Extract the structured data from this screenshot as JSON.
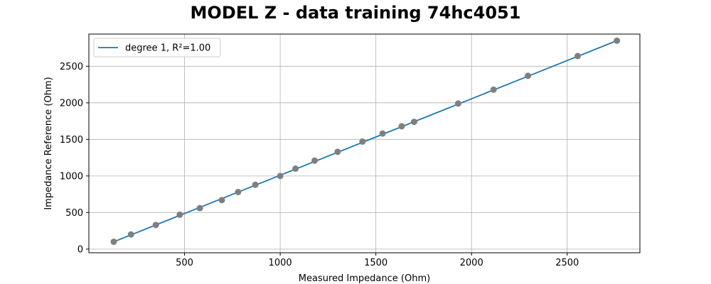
{
  "colors": {
    "line": "#1f77b4",
    "points": "#7f7f7f",
    "grid": "#b0b0b0",
    "axes": "#000000"
  },
  "chart_data": {
    "type": "scatter",
    "title": "MODEL Z - data training 74hc4051",
    "xlabel": "Measured Impedance (Ohm)",
    "ylabel": "Impedance Reference (Ohm)",
    "xlim": [
      0,
      2880
    ],
    "ylim": [
      -50,
      2940
    ],
    "xticks": [
      500,
      1000,
      1500,
      2000,
      2500
    ],
    "yticks": [
      0,
      500,
      1000,
      1500,
      2000,
      2500
    ],
    "grid": true,
    "legend_position": "top-left",
    "series": [
      {
        "name": "degree 1, R²=1.00",
        "kind": "line",
        "x": [
          130,
          2760
        ],
        "y": [
          100,
          2850
        ]
      },
      {
        "kind": "scatter",
        "x": [
          130,
          220,
          350,
          475,
          580,
          695,
          780,
          870,
          1000,
          1080,
          1180,
          1300,
          1430,
          1535,
          1635,
          1700,
          1930,
          2115,
          2295,
          2555,
          2760
        ],
        "y": [
          100,
          200,
          330,
          470,
          560,
          670,
          780,
          880,
          1000,
          1100,
          1210,
          1330,
          1470,
          1580,
          1680,
          1740,
          1990,
          2180,
          2370,
          2640,
          2850
        ]
      }
    ]
  }
}
